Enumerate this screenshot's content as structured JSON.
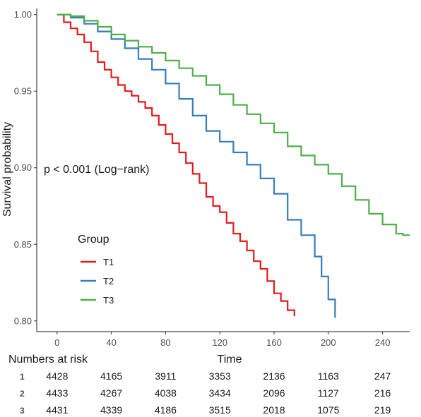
{
  "chart_data": {
    "type": "line",
    "subtype": "kaplan-meier step curves",
    "xlabel": "Time",
    "ylabel": "Survival probability",
    "xlim": [
      -15,
      260
    ],
    "ylim": [
      0.793,
      1.004
    ],
    "x_ticks": [
      0,
      40,
      80,
      120,
      160,
      200,
      240
    ],
    "y_ticks": [
      0.8,
      0.85,
      0.9,
      0.95,
      1.0
    ],
    "y_tick_labels": [
      "0.80",
      "0.85",
      "0.90",
      "0.95",
      "1.00"
    ],
    "grid": false,
    "annotation": "p < 0.001 (Log−rank)",
    "legend": {
      "title": "Group",
      "placement": "inside-left",
      "entries": [
        "T1",
        "T2",
        "T3"
      ]
    },
    "series": [
      {
        "name": "T1",
        "color": "#e41a1c",
        "points": [
          [
            0,
            1.0
          ],
          [
            5,
            0.995
          ],
          [
            10,
            0.991
          ],
          [
            15,
            0.987
          ],
          [
            20,
            0.982
          ],
          [
            25,
            0.976
          ],
          [
            30,
            0.969
          ],
          [
            35,
            0.964
          ],
          [
            40,
            0.959
          ],
          [
            45,
            0.954
          ],
          [
            50,
            0.95
          ],
          [
            55,
            0.947
          ],
          [
            60,
            0.943
          ],
          [
            65,
            0.939
          ],
          [
            70,
            0.934
          ],
          [
            75,
            0.928
          ],
          [
            80,
            0.922
          ],
          [
            85,
            0.916
          ],
          [
            90,
            0.91
          ],
          [
            95,
            0.903
          ],
          [
            100,
            0.896
          ],
          [
            105,
            0.89
          ],
          [
            110,
            0.881
          ],
          [
            115,
            0.875
          ],
          [
            120,
            0.871
          ],
          [
            125,
            0.864
          ],
          [
            130,
            0.857
          ],
          [
            135,
            0.852
          ],
          [
            140,
            0.846
          ],
          [
            145,
            0.839
          ],
          [
            150,
            0.834
          ],
          [
            155,
            0.826
          ],
          [
            160,
            0.818
          ],
          [
            165,
            0.813
          ],
          [
            170,
            0.807
          ],
          [
            175,
            0.803
          ]
        ]
      },
      {
        "name": "T2",
        "color": "#377eb8",
        "points": [
          [
            0,
            1.0
          ],
          [
            10,
            0.998
          ],
          [
            20,
            0.994
          ],
          [
            30,
            0.989
          ],
          [
            40,
            0.984
          ],
          [
            50,
            0.978
          ],
          [
            60,
            0.971
          ],
          [
            70,
            0.964
          ],
          [
            80,
            0.955
          ],
          [
            90,
            0.945
          ],
          [
            100,
            0.934
          ],
          [
            110,
            0.924
          ],
          [
            120,
            0.917
          ],
          [
            130,
            0.91
          ],
          [
            140,
            0.902
          ],
          [
            150,
            0.893
          ],
          [
            160,
            0.883
          ],
          [
            170,
            0.866
          ],
          [
            180,
            0.856
          ],
          [
            190,
            0.842
          ],
          [
            195,
            0.829
          ],
          [
            200,
            0.814
          ],
          [
            205,
            0.802
          ]
        ]
      },
      {
        "name": "T3",
        "color": "#4daf4a",
        "points": [
          [
            0,
            1.0
          ],
          [
            10,
            0.999
          ],
          [
            20,
            0.996
          ],
          [
            30,
            0.992
          ],
          [
            40,
            0.987
          ],
          [
            50,
            0.983
          ],
          [
            60,
            0.979
          ],
          [
            70,
            0.975
          ],
          [
            80,
            0.97
          ],
          [
            90,
            0.965
          ],
          [
            100,
            0.96
          ],
          [
            110,
            0.954
          ],
          [
            120,
            0.948
          ],
          [
            130,
            0.941
          ],
          [
            140,
            0.935
          ],
          [
            150,
            0.929
          ],
          [
            160,
            0.923
          ],
          [
            170,
            0.914
          ],
          [
            180,
            0.908
          ],
          [
            190,
            0.902
          ],
          [
            200,
            0.896
          ],
          [
            210,
            0.888
          ],
          [
            220,
            0.879
          ],
          [
            230,
            0.87
          ],
          [
            240,
            0.863
          ],
          [
            250,
            0.857
          ],
          [
            255,
            0.856
          ],
          [
            260,
            0.856
          ]
        ]
      }
    ],
    "risk_table": {
      "title": "Numbers at risk",
      "times": [
        0,
        40,
        80,
        120,
        160,
        200,
        240
      ],
      "rows": [
        {
          "group": "1",
          "values": [
            "4428",
            "4165",
            "3911",
            "3353",
            "2136",
            "1163",
            "247"
          ]
        },
        {
          "group": "2",
          "values": [
            "4433",
            "4267",
            "4038",
            "3434",
            "2096",
            "1127",
            "216"
          ]
        },
        {
          "group": "3",
          "values": [
            "4431",
            "4339",
            "4186",
            "3515",
            "2018",
            "1075",
            "219"
          ]
        }
      ]
    }
  }
}
